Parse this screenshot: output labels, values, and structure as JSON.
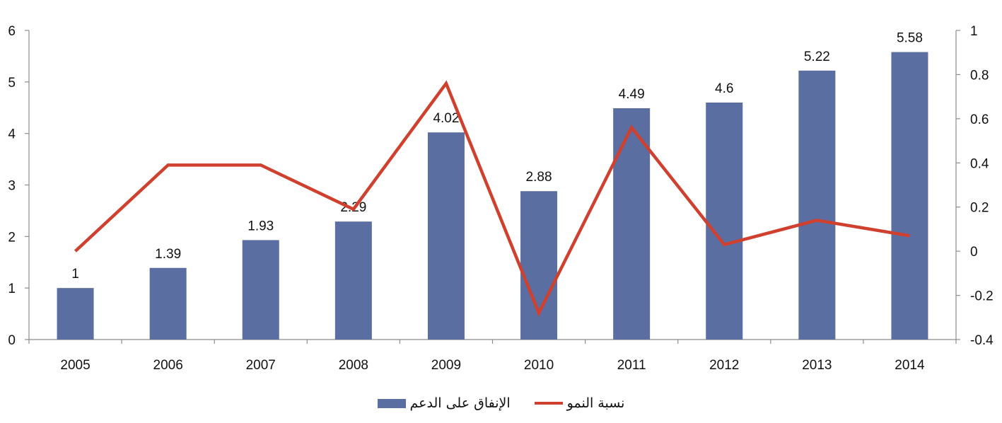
{
  "chart_data": {
    "type": "bar",
    "categories": [
      "2005",
      "2006",
      "2007",
      "2008",
      "2009",
      "2010",
      "2011",
      "2012",
      "2013",
      "2014"
    ],
    "series": [
      {
        "name": "الإنفاق على الدعم",
        "type": "bar",
        "axis": "left",
        "values": [
          1,
          1.39,
          1.93,
          2.29,
          4.02,
          2.88,
          4.49,
          4.6,
          5.22,
          5.58
        ],
        "labels": [
          "1",
          "1.39",
          "1.93",
          "2.29",
          "4.02",
          "2.88",
          "4.49",
          "4.6",
          "5.22",
          "5.58"
        ]
      },
      {
        "name": "نسبة النمو",
        "type": "line",
        "axis": "right",
        "values": [
          0,
          0.39,
          0.39,
          0.19,
          0.76,
          -0.28,
          0.56,
          0.03,
          0.14,
          0.07
        ]
      }
    ],
    "ylim_left": [
      0,
      6
    ],
    "yticks_left": [
      "0",
      "1",
      "2",
      "3",
      "4",
      "5",
      "6"
    ],
    "ylim_right": [
      -0.4,
      1
    ],
    "yticks_right": [
      "-0.4",
      "-0.2",
      "0",
      "0.2",
      "0.4",
      "0.6",
      "0.8",
      "1"
    ],
    "title": "",
    "xlabel": "",
    "ylabel": "",
    "grid": false,
    "legend_position": "bottom",
    "colors": {
      "bar": "#5b6ea2",
      "line": "#d0402e",
      "axis": "#8c8c8c"
    }
  },
  "legend": {
    "bar_label": "الإنفاق على الدعم",
    "line_label": "نسبة النمو"
  }
}
